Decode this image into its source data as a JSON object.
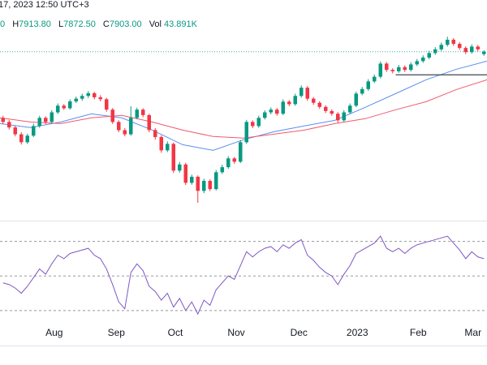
{
  "header": {
    "timestamp": "17, 2023 12:50 UTC+3",
    "open_fragment": "0",
    "fields": [
      [
        "H",
        "7913.80"
      ],
      [
        "L",
        "7872.50"
      ],
      [
        "C",
        "7903.00"
      ],
      [
        "Vol",
        "43.891K"
      ]
    ]
  },
  "chart_data": {
    "type": "candlestick",
    "xlim": [
      0,
      80
    ],
    "xticks": [
      {
        "value": 8.9,
        "label": "Aug"
      },
      {
        "value": 19.1,
        "label": "Sep"
      },
      {
        "value": 28.8,
        "label": "Oct"
      },
      {
        "value": 38.8,
        "label": "Nov"
      },
      {
        "value": 49.1,
        "label": "Dec"
      },
      {
        "value": 58.7,
        "label": "2023"
      },
      {
        "value": 68.7,
        "label": "Feb"
      },
      {
        "value": 77.7,
        "label": "Mar"
      }
    ],
    "ylim": [
      6670,
      8280
    ],
    "up_color": "#089981",
    "down_color": "#f23645",
    "candles": [
      [
        7420,
        7435,
        7375,
        7390
      ],
      [
        7390,
        7405,
        7335,
        7350
      ],
      [
        7350,
        7362,
        7285,
        7300
      ],
      [
        7300,
        7315,
        7225,
        7242
      ],
      [
        7242,
        7305,
        7230,
        7290
      ],
      [
        7290,
        7378,
        7280,
        7360
      ],
      [
        7360,
        7435,
        7348,
        7420
      ],
      [
        7420,
        7432,
        7375,
        7390
      ],
      [
        7390,
        7475,
        7380,
        7460
      ],
      [
        7460,
        7525,
        7448,
        7509
      ],
      [
        7509,
        7520,
        7478,
        7490
      ],
      [
        7490,
        7555,
        7480,
        7540
      ],
      [
        7540,
        7575,
        7528,
        7560
      ],
      [
        7560,
        7596,
        7545,
        7580
      ],
      [
        7580,
        7615,
        7566,
        7600
      ],
      [
        7600,
        7610,
        7555,
        7570
      ],
      [
        7570,
        7585,
        7540,
        7556
      ],
      [
        7556,
        7566,
        7465,
        7480
      ],
      [
        7480,
        7492,
        7375,
        7390
      ],
      [
        7390,
        7402,
        7315,
        7330
      ],
      [
        7330,
        7345,
        7285,
        7300
      ],
      [
        7300,
        7505,
        7290,
        7420
      ],
      [
        7420,
        7495,
        7410,
        7480
      ],
      [
        7480,
        7490,
        7425,
        7440
      ],
      [
        7440,
        7450,
        7315,
        7331
      ],
      [
        7331,
        7345,
        7262,
        7280
      ],
      [
        7280,
        7292,
        7165,
        7183
      ],
      [
        7183,
        7248,
        7170,
        7230
      ],
      [
        7230,
        7240,
        7018,
        7035
      ],
      [
        7035,
        7098,
        7020,
        7080
      ],
      [
        7080,
        7092,
        6930,
        6946
      ],
      [
        6946,
        7005,
        6932,
        6990
      ],
      [
        6990,
        7000,
        6800,
        6887
      ],
      [
        6887,
        6975,
        6870,
        6960
      ],
      [
        6960,
        6972,
        6885,
        6900
      ],
      [
        6900,
        7040,
        6890,
        7023
      ],
      [
        7023,
        7078,
        7010,
        7060
      ],
      [
        7060,
        7140,
        7048,
        7124
      ],
      [
        7124,
        7135,
        7085,
        7100
      ],
      [
        7100,
        7258,
        7090,
        7242
      ],
      [
        7242,
        7405,
        7230,
        7390
      ],
      [
        7390,
        7402,
        7345,
        7360
      ],
      [
        7360,
        7436,
        7348,
        7420
      ],
      [
        7420,
        7475,
        7408,
        7460
      ],
      [
        7460,
        7496,
        7446,
        7480
      ],
      [
        7480,
        7492,
        7436,
        7450
      ],
      [
        7450,
        7555,
        7440,
        7538
      ],
      [
        7538,
        7550,
        7505,
        7520
      ],
      [
        7520,
        7596,
        7508,
        7580
      ],
      [
        7580,
        7657,
        7568,
        7640
      ],
      [
        7640,
        7652,
        7545,
        7560
      ],
      [
        7560,
        7572,
        7515,
        7530
      ],
      [
        7530,
        7542,
        7485,
        7500
      ],
      [
        7500,
        7512,
        7455,
        7470
      ],
      [
        7470,
        7482,
        7435,
        7450
      ],
      [
        7450,
        7462,
        7385,
        7402
      ],
      [
        7402,
        7476,
        7390,
        7460
      ],
      [
        7460,
        7525,
        7448,
        7509
      ],
      [
        7509,
        7612,
        7498,
        7597
      ],
      [
        7597,
        7645,
        7585,
        7630
      ],
      [
        7630,
        7702,
        7618,
        7686
      ],
      [
        7686,
        7736,
        7674,
        7720
      ],
      [
        7720,
        7832,
        7708,
        7816
      ],
      [
        7816,
        7828,
        7755,
        7770
      ],
      [
        7770,
        7782,
        7745,
        7760
      ],
      [
        7760,
        7806,
        7748,
        7790
      ],
      [
        7790,
        7802,
        7755,
        7770
      ],
      [
        7770,
        7826,
        7758,
        7810
      ],
      [
        7810,
        7850,
        7798,
        7834
      ],
      [
        7834,
        7876,
        7822,
        7860
      ],
      [
        7860,
        7910,
        7848,
        7893
      ],
      [
        7893,
        7936,
        7880,
        7920
      ],
      [
        7920,
        7970,
        7908,
        7953
      ],
      [
        7953,
        8012,
        7940,
        7990
      ],
      [
        7990,
        8002,
        7945,
        7960
      ],
      [
        7960,
        7972,
        7915,
        7930
      ],
      [
        7930,
        7942,
        7885,
        7900
      ],
      [
        7900,
        7956,
        7888,
        7940
      ],
      [
        7940,
        7952,
        7905,
        7920
      ],
      [
        7885,
        7913.8,
        7872.5,
        7903
      ]
    ],
    "series": [
      {
        "color": "#5b8def",
        "x": [
          0,
          5,
          10,
          15,
          20,
          25,
          30,
          35,
          40,
          45,
          50,
          55,
          60,
          65,
          70,
          75,
          80
        ],
        "values": [
          7378,
          7349,
          7390,
          7449,
          7420,
          7331,
          7224,
          7183,
          7260,
          7319,
          7361,
          7402,
          7497,
          7597,
          7698,
          7775,
          7834
        ]
      },
      {
        "color": "#f05a6e",
        "x": [
          0,
          5,
          10,
          15,
          20,
          25,
          30,
          35,
          40,
          45,
          50,
          55,
          60,
          65,
          70,
          75,
          80
        ],
        "values": [
          7420,
          7390,
          7378,
          7420,
          7438,
          7390,
          7331,
          7284,
          7272,
          7301,
          7331,
          7378,
          7414,
          7479,
          7538,
          7627,
          7698
        ]
      }
    ],
    "ray": {
      "value": 7734,
      "start": 65,
      "color": "#434651"
    },
    "price_line": true,
    "rsi": {
      "color": "#7e57c2",
      "ylim": [
        21,
        82
      ],
      "levels": [
        70,
        50,
        30
      ],
      "values": [
        46,
        45,
        43,
        40,
        44,
        49,
        54,
        51,
        57,
        62,
        60,
        63,
        64,
        65,
        66,
        62,
        60,
        54,
        45,
        35,
        31,
        52,
        57,
        53,
        44,
        41,
        36,
        40,
        32,
        37,
        30,
        35,
        28,
        36,
        33,
        42,
        46,
        50,
        48,
        56,
        64,
        61,
        64,
        66,
        67,
        64,
        68,
        66,
        69,
        71,
        62,
        59,
        55,
        52,
        50,
        45,
        51,
        56,
        63,
        65,
        67,
        69,
        73,
        66,
        64,
        66,
        63,
        66,
        68,
        69,
        70,
        71,
        72,
        73,
        69,
        65,
        60,
        64,
        61,
        60
      ]
    }
  }
}
